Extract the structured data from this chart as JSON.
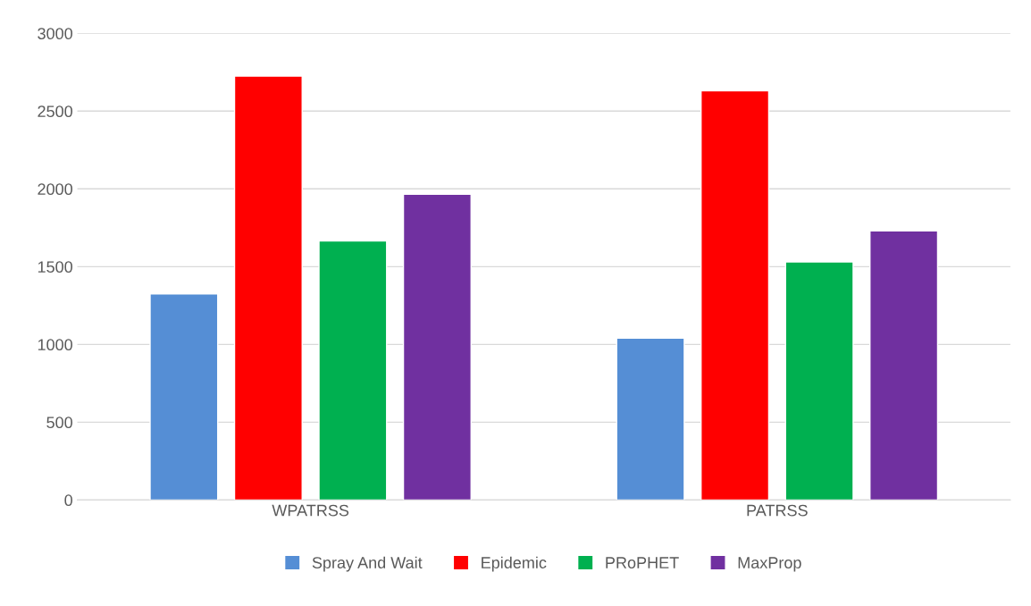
{
  "chart_data": {
    "type": "bar",
    "categories": [
      "WPATRSS",
      "PATRSS"
    ],
    "series": [
      {
        "name": "Spray And Wait",
        "color": "#558ed5",
        "values": [
          1325,
          1040
        ]
      },
      {
        "name": "Epidemic",
        "color": "#ff0000",
        "values": [
          2725,
          2630
        ]
      },
      {
        "name": "PRoPHET",
        "color": "#00b050",
        "values": [
          1665,
          1530
        ]
      },
      {
        "name": "MaxProp",
        "color": "#7030a0",
        "values": [
          1965,
          1730
        ]
      }
    ],
    "ylim": [
      0,
      3000
    ],
    "yticks": [
      0,
      500,
      1000,
      1500,
      2000,
      2500,
      3000
    ],
    "grid": "y",
    "legend": "bottom"
  }
}
